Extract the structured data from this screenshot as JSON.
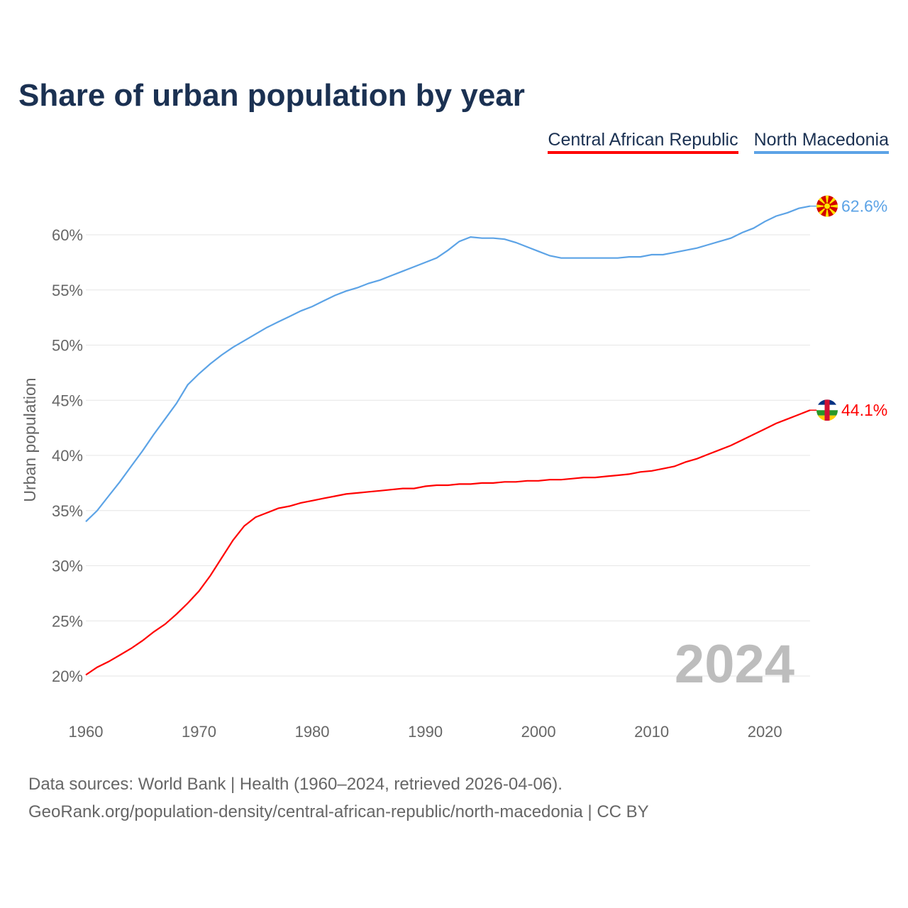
{
  "title": "Share of urban population by year",
  "footer": {
    "line1": "Data sources: World Bank | Health (1960–2024, retrieved 2026-04-06).",
    "line2": "GeoRank.org/population-density/central-african-republic/north-macedonia | CC BY"
  },
  "chart_data": {
    "type": "line",
    "title": "Share of urban population by year",
    "xlabel": "",
    "ylabel": "Urban population",
    "xlim": [
      1960,
      2024
    ],
    "ylim": [
      17.5,
      63
    ],
    "x_ticks": [
      "1960",
      "1970",
      "1980",
      "1990",
      "2000",
      "2010",
      "2020"
    ],
    "y_ticks": [
      "20%",
      "25%",
      "30%",
      "35%",
      "40%",
      "45%",
      "50%",
      "55%",
      "60%"
    ],
    "year_watermark": "2024",
    "grid": true,
    "legend_position": "top-right",
    "x": [
      1960,
      1961,
      1962,
      1963,
      1964,
      1965,
      1966,
      1967,
      1968,
      1969,
      1970,
      1971,
      1972,
      1973,
      1974,
      1975,
      1976,
      1977,
      1978,
      1979,
      1980,
      1981,
      1982,
      1983,
      1984,
      1985,
      1986,
      1987,
      1988,
      1989,
      1990,
      1991,
      1992,
      1993,
      1994,
      1995,
      1996,
      1997,
      1998,
      1999,
      2000,
      2001,
      2002,
      2003,
      2004,
      2005,
      2006,
      2007,
      2008,
      2009,
      2010,
      2011,
      2012,
      2013,
      2014,
      2015,
      2016,
      2017,
      2018,
      2019,
      2020,
      2021,
      2022,
      2023,
      2024
    ],
    "series": [
      {
        "name": "Central African Republic",
        "color": "#ff0000",
        "end_label": "44.1%",
        "values": [
          20.1,
          20.8,
          21.3,
          21.9,
          22.5,
          23.2,
          24.0,
          24.7,
          25.6,
          26.6,
          27.7,
          29.1,
          30.7,
          32.3,
          33.6,
          34.4,
          34.8,
          35.2,
          35.4,
          35.7,
          35.9,
          36.1,
          36.3,
          36.5,
          36.6,
          36.7,
          36.8,
          36.9,
          37.0,
          37.0,
          37.2,
          37.3,
          37.3,
          37.4,
          37.4,
          37.5,
          37.5,
          37.6,
          37.6,
          37.7,
          37.7,
          37.8,
          37.8,
          37.9,
          38.0,
          38.0,
          38.1,
          38.2,
          38.3,
          38.5,
          38.6,
          38.8,
          39.0,
          39.4,
          39.7,
          40.1,
          40.5,
          40.9,
          41.4,
          41.9,
          42.4,
          42.9,
          43.3,
          43.7,
          44.1
        ]
      },
      {
        "name": "North Macedonia",
        "color": "#5ca3e6",
        "end_label": "62.6%",
        "values": [
          34.0,
          35.0,
          36.3,
          37.6,
          39.0,
          40.4,
          41.9,
          43.3,
          44.7,
          46.4,
          47.4,
          48.3,
          49.1,
          49.8,
          50.4,
          51.0,
          51.6,
          52.1,
          52.6,
          53.1,
          53.5,
          54.0,
          54.5,
          54.9,
          55.2,
          55.6,
          55.9,
          56.3,
          56.7,
          57.1,
          57.5,
          57.9,
          58.6,
          59.4,
          59.8,
          59.7,
          59.7,
          59.6,
          59.3,
          58.9,
          58.5,
          58.1,
          57.9,
          57.9,
          57.9,
          57.9,
          57.9,
          57.9,
          58.0,
          58.0,
          58.2,
          58.2,
          58.4,
          58.6,
          58.8,
          59.1,
          59.4,
          59.7,
          60.2,
          60.6,
          61.2,
          61.7,
          62.0,
          62.4,
          62.6
        ]
      }
    ]
  }
}
